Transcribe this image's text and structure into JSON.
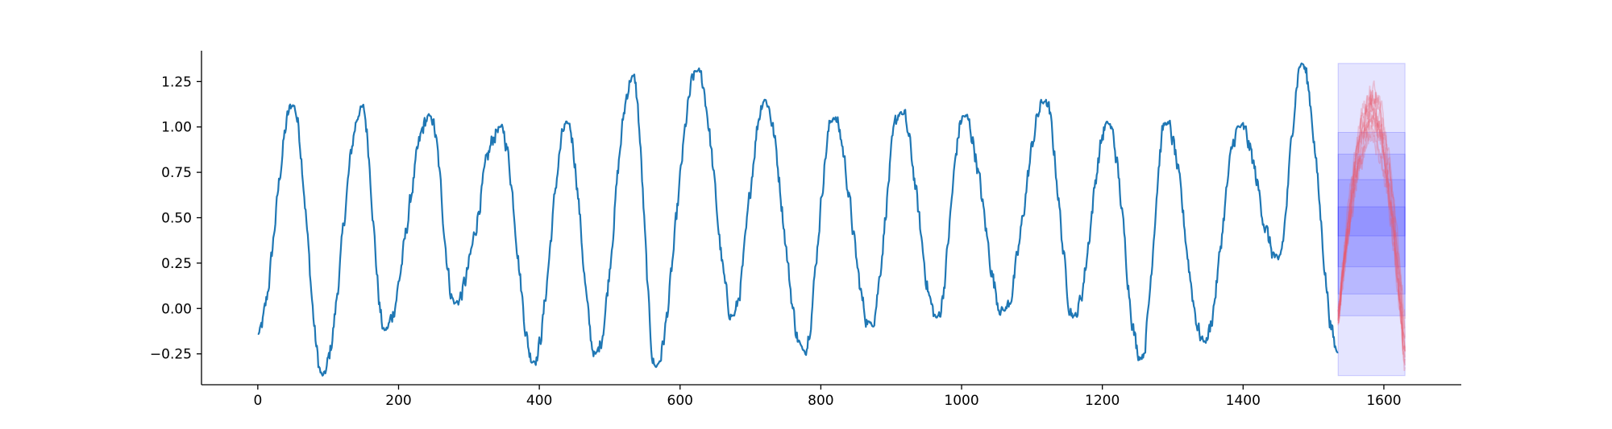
{
  "chart_data": {
    "type": "line",
    "title": "",
    "xlabel": "",
    "ylabel": "",
    "xlim": [
      -80,
      1710
    ],
    "ylim": [
      -0.42,
      1.42
    ],
    "x_ticks": [
      0,
      200,
      400,
      600,
      800,
      1000,
      1200,
      1400,
      1600
    ],
    "x_tick_labels": [
      "0",
      "200",
      "400",
      "600",
      "800",
      "1000",
      "1200",
      "1400",
      "1600"
    ],
    "y_ticks": [
      -0.25,
      0.0,
      0.25,
      0.5,
      0.75,
      1.0,
      1.25
    ],
    "y_tick_labels": [
      "−0.25",
      "0.00",
      "0.25",
      "0.50",
      "0.75",
      "1.00",
      "1.25"
    ],
    "grid": false,
    "series": [
      {
        "color": "#1f77b4",
        "peaks": [
          {
            "x": 0,
            "y": -0.14
          },
          {
            "x": 50,
            "y": 1.12
          },
          {
            "x": 92,
            "y": -0.37
          },
          {
            "x": 148,
            "y": 1.11
          },
          {
            "x": 180,
            "y": -0.12
          },
          {
            "x": 245,
            "y": 1.06
          },
          {
            "x": 280,
            "y": 0.03
          },
          {
            "x": 345,
            "y": 1.0
          },
          {
            "x": 392,
            "y": -0.29
          },
          {
            "x": 440,
            "y": 1.02
          },
          {
            "x": 480,
            "y": -0.25
          },
          {
            "x": 533,
            "y": 1.28
          },
          {
            "x": 565,
            "y": -0.32
          },
          {
            "x": 625,
            "y": 1.31
          },
          {
            "x": 675,
            "y": -0.04
          },
          {
            "x": 720,
            "y": 1.15
          },
          {
            "x": 775,
            "y": -0.23
          },
          {
            "x": 818,
            "y": 1.05
          },
          {
            "x": 870,
            "y": -0.08
          },
          {
            "x": 913,
            "y": 1.08
          },
          {
            "x": 965,
            "y": -0.05
          },
          {
            "x": 1003,
            "y": 1.06
          },
          {
            "x": 1060,
            "y": -0.01
          },
          {
            "x": 1118,
            "y": 1.14
          },
          {
            "x": 1160,
            "y": -0.04
          },
          {
            "x": 1208,
            "y": 1.02
          },
          {
            "x": 1255,
            "y": -0.27
          },
          {
            "x": 1290,
            "y": 1.02
          },
          {
            "x": 1345,
            "y": -0.18
          },
          {
            "x": 1395,
            "y": 1.0
          },
          {
            "x": 1450,
            "y": 0.27
          },
          {
            "x": 1483,
            "y": 1.35
          },
          {
            "x": 1535,
            "y": -0.24
          }
        ]
      }
    ],
    "forecast_interval_bands": {
      "x_range": [
        1535,
        1630
      ],
      "color": "#0000ff",
      "bands": [
        {
          "low": -0.37,
          "high": 1.35
        },
        {
          "low": -0.04,
          "high": 0.97
        },
        {
          "low": 0.08,
          "high": 0.85
        },
        {
          "low": 0.23,
          "high": 0.71
        },
        {
          "low": 0.4,
          "high": 0.56
        }
      ]
    },
    "forecast_sample_paths": {
      "color": "#e8586b",
      "x_start": 1535,
      "x_peak": 1584,
      "x_end": 1630,
      "count": 12,
      "start_y": -0.05,
      "peak_y": 1.05,
      "end_y": -0.2
    }
  }
}
